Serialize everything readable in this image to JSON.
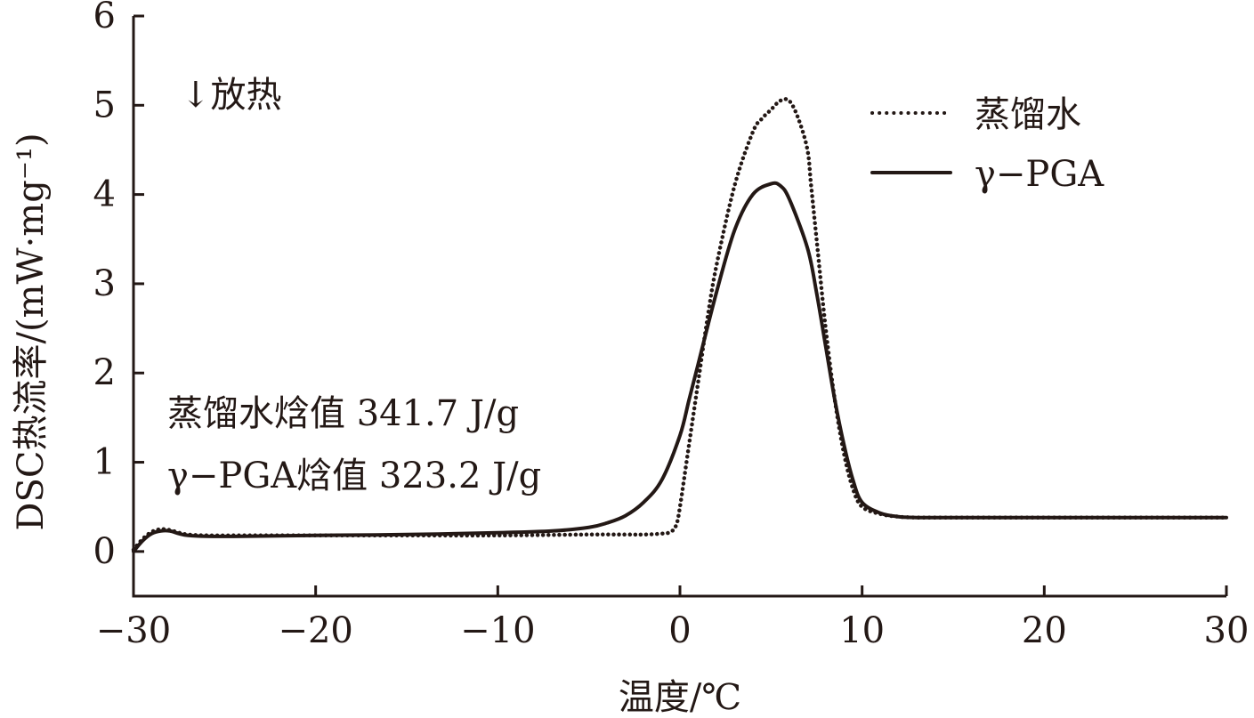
{
  "chart_data": {
    "type": "line",
    "xlabel": "温度/℃",
    "ylabel": "DSC热流率/(mW·mg⁻¹)",
    "xlim": [
      -30,
      30
    ],
    "ylim": [
      -0.5,
      6
    ],
    "x_ticks": [
      -30,
      -20,
      -10,
      0,
      10,
      20,
      30
    ],
    "y_ticks": [
      0,
      1,
      2,
      3,
      4,
      5,
      6
    ],
    "x_tick_labels": [
      "−30",
      "−20",
      "−10",
      "0",
      "10",
      "20",
      "30"
    ],
    "y_tick_labels": [
      "0",
      "1",
      "2",
      "3",
      "4",
      "5",
      "6"
    ],
    "grid": false,
    "legend_position": "top-right",
    "annotations": {
      "exotherm": "↓放热",
      "enthalpy_water": "蒸馏水焓值 341.7 J/g",
      "enthalpy_pga": "γ−PGA焓值 323.2 J/g"
    },
    "series": [
      {
        "name": "蒸馏水",
        "style": "dotted",
        "color": "#231815",
        "x": [
          -30,
          -29.5,
          -29,
          -28.5,
          -28,
          -27.5,
          -27,
          -26,
          -24,
          -20,
          -15,
          -10,
          -5,
          -3,
          -2,
          -1,
          -0.5,
          -0.2,
          0,
          0.5,
          1,
          1.5,
          2,
          3,
          4,
          4.5,
          5,
          5.5,
          6,
          6.5,
          7,
          7.2,
          7.5,
          8,
          8.5,
          9,
          9.5,
          10,
          11,
          12,
          13,
          14,
          16,
          20,
          25,
          30
        ],
        "y": [
          0.02,
          0.14,
          0.22,
          0.25,
          0.24,
          0.21,
          0.19,
          0.18,
          0.18,
          0.18,
          0.18,
          0.18,
          0.19,
          0.19,
          0.19,
          0.2,
          0.22,
          0.3,
          0.5,
          1.2,
          1.9,
          2.6,
          3.2,
          4.1,
          4.7,
          4.85,
          4.95,
          5.05,
          5.05,
          4.85,
          4.5,
          4.1,
          3.5,
          2.5,
          1.7,
          1.1,
          0.7,
          0.5,
          0.42,
          0.39,
          0.38,
          0.38,
          0.38,
          0.38,
          0.38,
          0.38
        ]
      },
      {
        "name": "γ−PGA",
        "style": "solid",
        "color": "#231815",
        "x": [
          -30,
          -29.5,
          -29,
          -28.5,
          -28,
          -27.5,
          -27,
          -26,
          -24,
          -20,
          -15,
          -10,
          -7,
          -5,
          -4,
          -3,
          -2,
          -1,
          0,
          0.5,
          1,
          2,
          3,
          4,
          5,
          5.5,
          6,
          7,
          7.5,
          8,
          8.5,
          9,
          9.5,
          10,
          11,
          12,
          13,
          14,
          16,
          20,
          25,
          30
        ],
        "y": [
          0.0,
          0.12,
          0.2,
          0.23,
          0.23,
          0.2,
          0.18,
          0.17,
          0.17,
          0.18,
          0.19,
          0.21,
          0.23,
          0.27,
          0.32,
          0.4,
          0.55,
          0.8,
          1.3,
          1.7,
          2.1,
          2.9,
          3.6,
          4.0,
          4.12,
          4.1,
          3.95,
          3.4,
          2.9,
          2.3,
          1.7,
          1.2,
          0.8,
          0.55,
          0.43,
          0.39,
          0.38,
          0.38,
          0.38,
          0.38,
          0.38,
          0.38
        ]
      }
    ]
  }
}
